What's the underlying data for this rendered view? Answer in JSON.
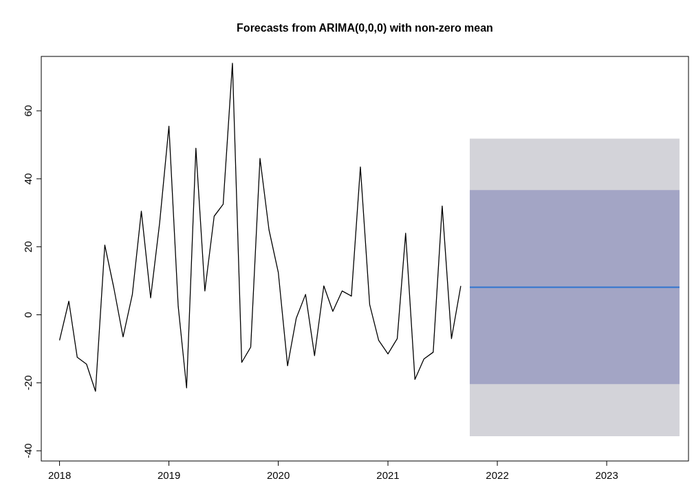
{
  "chart_data": {
    "type": "line",
    "title": "Forecasts from ARIMA(0,0,0) with non-zero mean",
    "xlim": [
      "2017-11",
      "2023-10"
    ],
    "ylim": [
      -43,
      76
    ],
    "xticks": [
      {
        "value": "2018",
        "label": "2018"
      },
      {
        "value": "2019",
        "label": "2019"
      },
      {
        "value": "2020",
        "label": "2020"
      },
      {
        "value": "2021",
        "label": "2021"
      },
      {
        "value": "2022",
        "label": "2022"
      },
      {
        "value": "2023",
        "label": "2023"
      }
    ],
    "yticks": [
      -40,
      -20,
      0,
      20,
      40,
      60
    ],
    "grid": false,
    "series": [
      {
        "color": "#000000",
        "x": [
          "2018-01",
          "2018-02",
          "2018-03",
          "2018-04",
          "2018-05",
          "2018-06",
          "2018-07",
          "2018-08",
          "2018-09",
          "2018-10",
          "2018-11",
          "2018-12",
          "2019-01",
          "2019-02",
          "2019-03",
          "2019-04",
          "2019-05",
          "2019-06",
          "2019-07",
          "2019-08",
          "2019-09",
          "2019-10",
          "2019-11",
          "2019-12",
          "2020-01",
          "2020-02",
          "2020-03",
          "2020-04",
          "2020-05",
          "2020-06",
          "2020-07",
          "2020-08",
          "2020-09",
          "2020-10",
          "2020-11",
          "2020-12",
          "2021-01",
          "2021-02",
          "2021-03",
          "2021-04",
          "2021-05",
          "2021-06",
          "2021-07",
          "2021-08",
          "2021-09"
        ],
        "values": [
          -7.5,
          4,
          -12.5,
          -14.5,
          -22.5,
          20.5,
          8,
          -6.5,
          6,
          30.5,
          5,
          27,
          55.5,
          2.5,
          -21.5,
          49,
          7,
          29,
          32.5,
          74,
          -14,
          -9.5,
          46,
          25,
          12.5,
          -15,
          -1,
          6,
          -12,
          8.5,
          1,
          7,
          5.5,
          43.5,
          3,
          -7.5,
          -11.5,
          -7,
          24,
          -19,
          -13,
          -11,
          32,
          -7,
          8.5
        ]
      },
      {
        "type": "area",
        "color": "#d3d3d9",
        "x": [
          "2021-10",
          "2023-09"
        ],
        "values": [
          null,
          null
        ],
        "lower": [
          -35.7,
          -35.7
        ],
        "upper": [
          51.8,
          51.8
        ]
      },
      {
        "type": "area",
        "color": "#a3a5c5",
        "x": [
          "2021-10",
          "2023-09"
        ],
        "values": [
          null,
          null
        ],
        "lower": [
          -20.4,
          -20.4
        ],
        "upper": [
          36.7,
          36.7
        ]
      },
      {
        "color": "#2f74d0",
        "x": [
          "2021-10",
          "2023-09"
        ],
        "values": [
          8.1,
          8.1
        ]
      }
    ]
  }
}
